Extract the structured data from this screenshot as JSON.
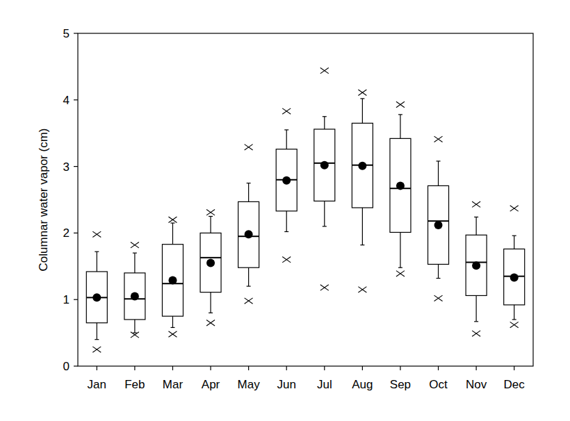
{
  "chart_data": {
    "type": "box",
    "y_label": "Columnar water vapor (cm)",
    "categories": [
      "Jan",
      "Feb",
      "Mar",
      "Apr",
      "May",
      "Jun",
      "Jul",
      "Aug",
      "Sep",
      "Oct",
      "Nov",
      "Dec"
    ],
    "max": [
      1.98,
      1.82,
      2.2,
      2.31,
      3.29,
      3.83,
      4.44,
      4.11,
      3.93,
      3.41,
      2.43,
      2.37
    ],
    "whisker_high": [
      1.72,
      1.7,
      2.15,
      2.25,
      2.75,
      3.55,
      3.75,
      4.02,
      3.78,
      3.08,
      2.24,
      1.96
    ],
    "q3": [
      1.42,
      1.4,
      1.83,
      2.0,
      2.47,
      3.26,
      3.56,
      3.65,
      3.42,
      2.71,
      1.97,
      1.76
    ],
    "median": [
      1.03,
      1.01,
      1.24,
      1.63,
      1.95,
      2.8,
      3.05,
      3.02,
      2.67,
      2.18,
      1.56,
      1.35
    ],
    "mean": [
      1.03,
      1.05,
      1.29,
      1.55,
      1.98,
      2.79,
      3.02,
      3.01,
      2.71,
      2.12,
      1.51,
      1.33
    ],
    "q1": [
      0.65,
      0.7,
      0.75,
      1.11,
      1.48,
      2.33,
      2.48,
      2.38,
      2.01,
      1.53,
      1.06,
      0.92
    ],
    "whisker_low": [
      0.4,
      0.5,
      0.58,
      0.8,
      1.2,
      2.02,
      2.1,
      1.82,
      1.48,
      1.32,
      0.67,
      0.7
    ],
    "min": [
      0.25,
      0.47,
      0.48,
      0.65,
      0.98,
      1.6,
      1.18,
      1.15,
      1.39,
      1.02,
      0.49,
      0.62
    ],
    "ylim": [
      0,
      5
    ],
    "yticks": [
      0,
      1,
      2,
      3,
      4,
      5
    ],
    "color": "#000000"
  }
}
